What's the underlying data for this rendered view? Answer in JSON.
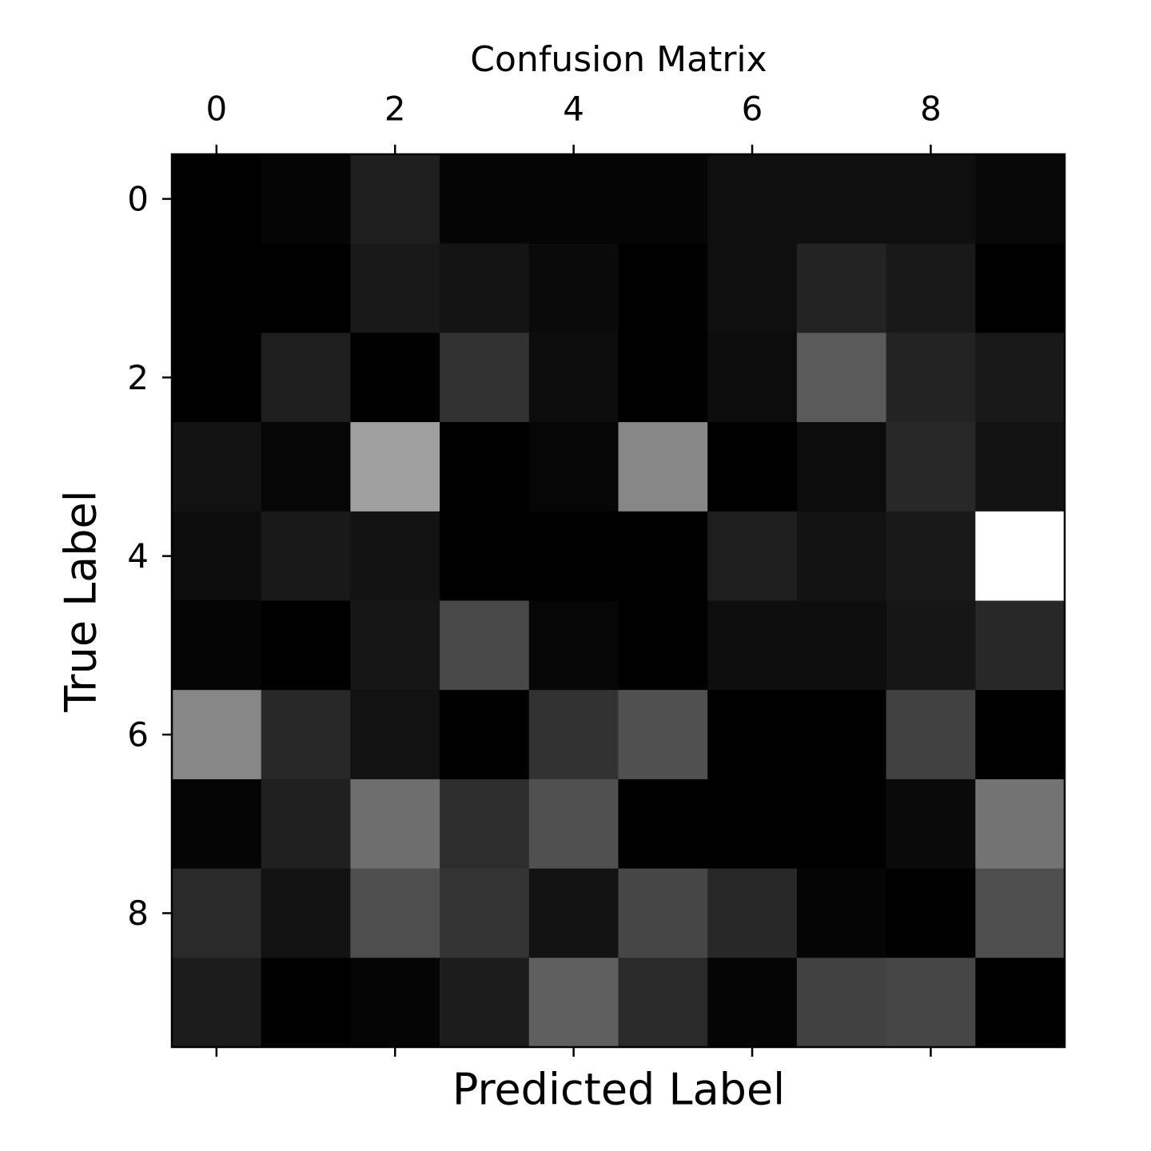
{
  "chart_data": {
    "type": "heatmap",
    "title": "Confusion Matrix",
    "xlabel": "Predicted Label",
    "ylabel": "True Label",
    "xlim": [
      -0.5,
      9.5
    ],
    "ylim": [
      9.5,
      -0.5
    ],
    "xticks": [
      0,
      2,
      4,
      6,
      8
    ],
    "yticks": [
      0,
      2,
      4,
      6,
      8
    ],
    "colormap": "gray",
    "z": [
      [
        0,
        5,
        30,
        5,
        5,
        5,
        15,
        15,
        15,
        8
      ],
      [
        0,
        0,
        25,
        20,
        10,
        0,
        15,
        35,
        25,
        0
      ],
      [
        0,
        30,
        0,
        50,
        12,
        0,
        12,
        90,
        35,
        25
      ],
      [
        18,
        6,
        160,
        0,
        6,
        135,
        0,
        12,
        40,
        18
      ],
      [
        12,
        25,
        18,
        0,
        0,
        0,
        30,
        18,
        25,
        255
      ],
      [
        5,
        0,
        22,
        72,
        6,
        0,
        14,
        14,
        22,
        40
      ],
      [
        135,
        40,
        18,
        0,
        50,
        80,
        0,
        0,
        65,
        0
      ],
      [
        5,
        32,
        110,
        45,
        80,
        0,
        0,
        0,
        10,
        115
      ],
      [
        42,
        18,
        78,
        52,
        18,
        70,
        40,
        5,
        0,
        78
      ],
      [
        28,
        0,
        5,
        28,
        95,
        42,
        5,
        65,
        70,
        0
      ]
    ]
  }
}
